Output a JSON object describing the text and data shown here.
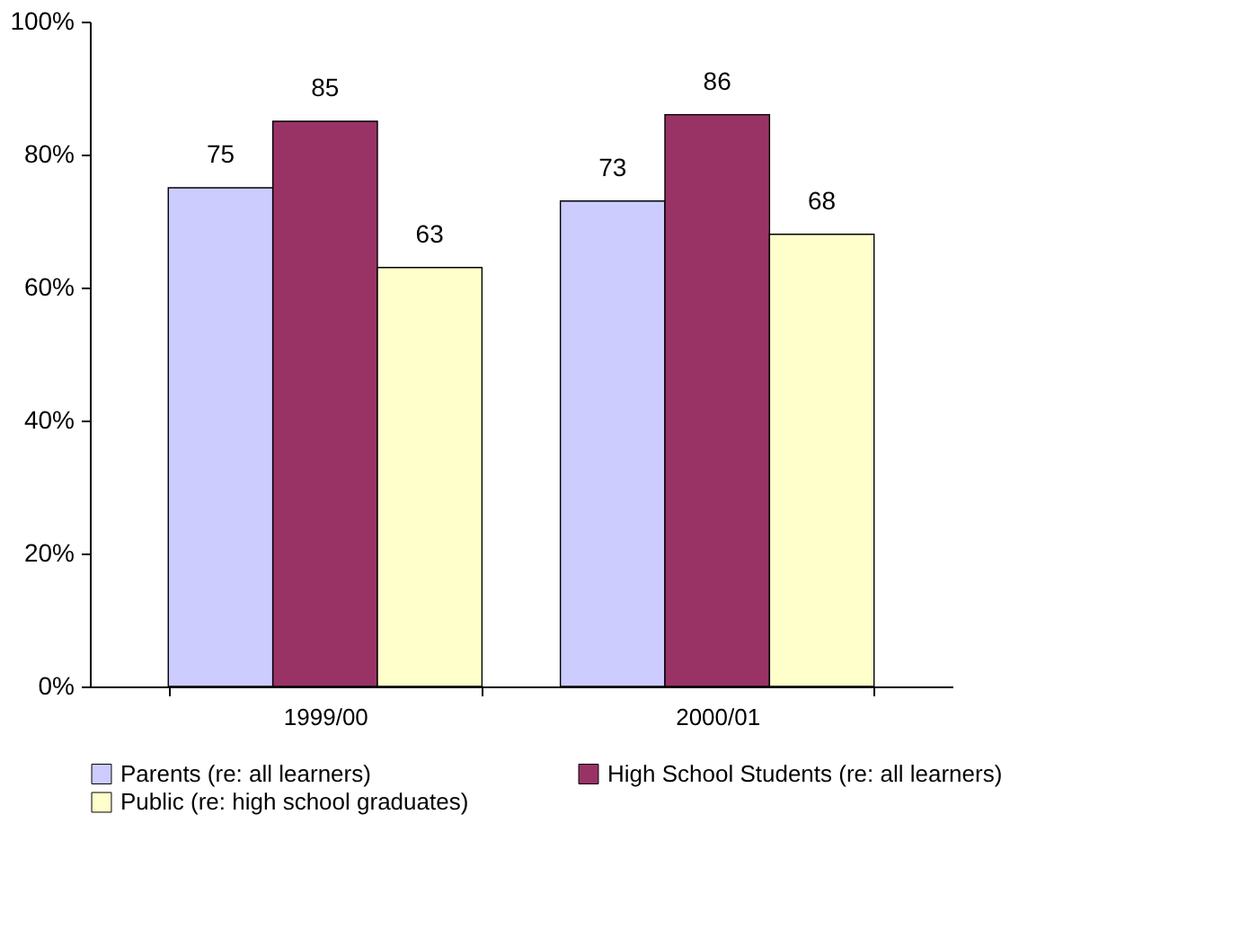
{
  "chart_data": {
    "type": "bar",
    "categories": [
      "1999/00",
      "2000/01"
    ],
    "series": [
      {
        "name": "Parents (re: all learners)",
        "color": "#ccccff",
        "values": [
          75,
          73
        ]
      },
      {
        "name": "High School Students (re: all learners)",
        "color": "#993366",
        "values": [
          85,
          86
        ]
      },
      {
        "name": "Public (re: high school graduates)",
        "color": "#ffffcc",
        "values": [
          63,
          68
        ]
      }
    ],
    "ylim": [
      0,
      100
    ],
    "yticks": [
      {
        "value": 0,
        "label": "0%"
      },
      {
        "value": 20,
        "label": "20%"
      },
      {
        "value": 40,
        "label": "40%"
      },
      {
        "value": 60,
        "label": "60%"
      },
      {
        "value": 80,
        "label": "80%"
      },
      {
        "value": 100,
        "label": "100%"
      }
    ],
    "grid": false,
    "legend": "bottom",
    "data_labels": true
  }
}
